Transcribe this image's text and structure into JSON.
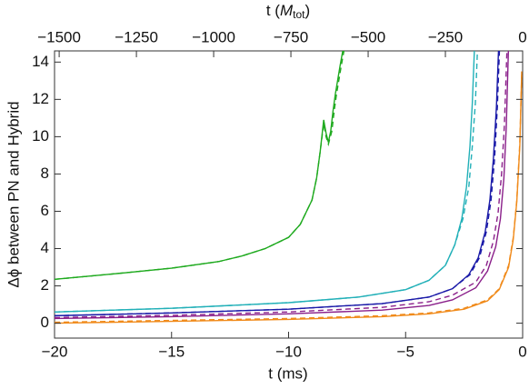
{
  "chart_data": {
    "type": "line",
    "xlabel": "t (ms)",
    "x2label": {
      "prefix": "t (",
      "symbol": "M",
      "subscript": "tot",
      "suffix": ")"
    },
    "ylabel": "Δϕ between PN and Hybrid",
    "xlim": [
      -20,
      0
    ],
    "xticks": [
      {
        "value": -20,
        "label": "−20"
      },
      {
        "value": -15,
        "label": "−15"
      },
      {
        "value": -10,
        "label": "−10"
      },
      {
        "value": -5,
        "label": "−5"
      },
      0
    ],
    "x2lim": [
      -1515,
      0
    ],
    "x2ticks": [
      {
        "value": -1500,
        "label": "−1500"
      },
      {
        "value": -1250,
        "label": "−1250"
      },
      {
        "value": -1000,
        "label": "−1000"
      },
      {
        "value": -750,
        "label": "−750"
      },
      {
        "value": -500,
        "label": "−500"
      },
      {
        "value": -250,
        "label": "−250"
      },
      0
    ],
    "ylim": [
      -0.8,
      14.6
    ],
    "yticks": [
      0,
      2,
      4,
      6,
      8,
      10,
      12,
      14
    ],
    "series": [
      {
        "color": "#1faa1f",
        "dashed": false,
        "x": [
          -20,
          -17,
          -15,
          -13,
          -12,
          -11,
          -10,
          -9.5,
          -9,
          -8.8,
          -8.65,
          -8.5,
          -8.4,
          -8.3,
          -8.2,
          -8.1,
          -8,
          -7.8,
          -7.6
        ],
        "values": [
          2.35,
          2.7,
          2.95,
          3.3,
          3.6,
          4.0,
          4.6,
          5.3,
          6.6,
          7.8,
          9.2,
          10.9,
          10.2,
          9.7,
          10.3,
          11.4,
          12.3,
          13.8,
          15.2
        ]
      },
      {
        "color": "#1faa1f",
        "dashed": true,
        "x": [
          -20,
          -17,
          -15,
          -13,
          -12,
          -11,
          -10,
          -9.5,
          -9,
          -8.8,
          -8.65,
          -8.5,
          -8.4,
          -8.3,
          -8.15,
          -8.05,
          -7.95,
          -7.75,
          -7.55
        ],
        "values": [
          2.35,
          2.7,
          2.95,
          3.3,
          3.6,
          4.0,
          4.6,
          5.3,
          6.6,
          7.8,
          9.2,
          10.7,
          10.0,
          9.6,
          10.3,
          11.4,
          12.3,
          13.8,
          15.2
        ]
      },
      {
        "color": "#22b0b8",
        "dashed": false,
        "x": [
          -20,
          -15,
          -10,
          -7,
          -5,
          -4,
          -3.3,
          -2.9,
          -2.6,
          -2.4,
          -2.25,
          -2.15,
          -2.05
        ],
        "values": [
          0.6,
          0.8,
          1.1,
          1.4,
          1.8,
          2.3,
          3.1,
          4.2,
          5.6,
          7.3,
          9.5,
          11.8,
          15
        ]
      },
      {
        "color": "#22b0b8",
        "dashed": true,
        "x": [
          -20,
          -15,
          -10,
          -7,
          -5,
          -4,
          -3.3,
          -2.9,
          -2.55,
          -2.3,
          -2.15,
          -2.02,
          -1.92
        ],
        "values": [
          0.6,
          0.8,
          1.1,
          1.4,
          1.8,
          2.3,
          3.1,
          4.2,
          5.6,
          7.3,
          9.5,
          11.8,
          15
        ]
      },
      {
        "color": "#1a1aa8",
        "dashed": false,
        "x": [
          -20,
          -15,
          -10,
          -6,
          -4,
          -3,
          -2.3,
          -1.9,
          -1.6,
          -1.4,
          -1.25,
          -1.12,
          -1.02
        ],
        "values": [
          0.4,
          0.55,
          0.75,
          1.05,
          1.4,
          1.85,
          2.6,
          3.5,
          4.9,
          6.6,
          8.8,
          11.6,
          15
        ]
      },
      {
        "color": "#1a1aa8",
        "dashed": true,
        "x": [
          -20,
          -15,
          -10,
          -6,
          -4,
          -3,
          -2.25,
          -1.85,
          -1.55,
          -1.35,
          -1.2,
          -1.08,
          -0.98
        ],
        "values": [
          0.4,
          0.55,
          0.75,
          1.05,
          1.4,
          1.85,
          2.6,
          3.5,
          4.9,
          6.6,
          8.8,
          11.6,
          15
        ]
      },
      {
        "color": "#8a1f8a",
        "dashed": false,
        "x": [
          -20,
          -15,
          -10,
          -6,
          -4,
          -3,
          -2,
          -1.5,
          -1.15,
          -0.95,
          -0.8,
          -0.7,
          -0.6
        ],
        "values": [
          0.25,
          0.35,
          0.5,
          0.7,
          0.95,
          1.25,
          1.9,
          2.8,
          4.1,
          5.6,
          7.8,
          10.5,
          15
        ]
      },
      {
        "color": "#8a1f8a",
        "dashed": true,
        "x": [
          -20,
          -15,
          -10,
          -6,
          -4,
          -3,
          -2,
          -1.55,
          -1.25,
          -1.05,
          -0.9,
          -0.78,
          -0.66
        ],
        "values": [
          0.3,
          0.42,
          0.6,
          0.85,
          1.15,
          1.5,
          2.2,
          3.1,
          4.4,
          5.9,
          8.0,
          10.6,
          15
        ]
      },
      {
        "color": "#f08a1a",
        "dashed": false,
        "x": [
          -20,
          -15,
          -10,
          -6,
          -4,
          -2.5,
          -1.5,
          -1,
          -0.6,
          -0.4,
          -0.25,
          -0.12,
          -0.04
        ],
        "values": [
          0.0,
          0.1,
          0.2,
          0.35,
          0.5,
          0.75,
          1.2,
          1.8,
          3.0,
          4.5,
          6.5,
          9.5,
          13.5
        ]
      },
      {
        "color": "#f08a1a",
        "dashed": true,
        "x": [
          -20,
          -15,
          -10,
          -6,
          -4,
          -2.5,
          -1.5,
          -1,
          -0.6,
          -0.4,
          -0.25,
          -0.12,
          -0.04
        ],
        "values": [
          0.05,
          0.15,
          0.25,
          0.4,
          0.55,
          0.8,
          1.25,
          1.85,
          3.1,
          4.6,
          6.6,
          9.7,
          13.3
        ]
      }
    ]
  }
}
